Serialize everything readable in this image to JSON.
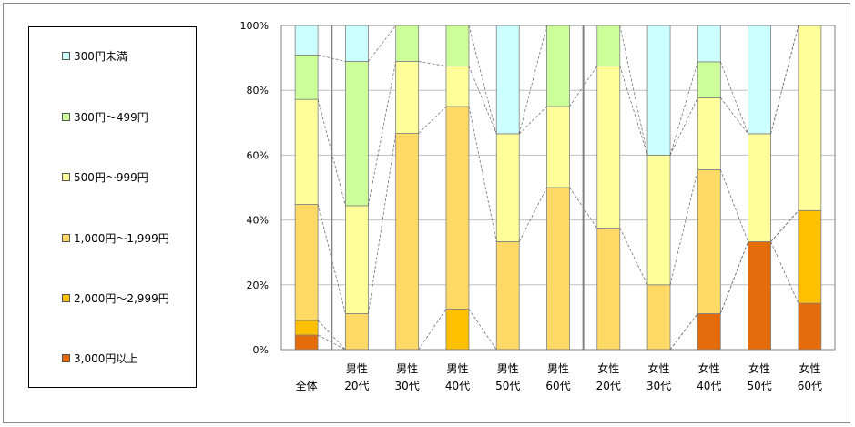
{
  "chart_data": {
    "type": "bar",
    "stacked": true,
    "percent": true,
    "title": "",
    "xlabel": "",
    "ylabel": "",
    "ylim": [
      0,
      100
    ],
    "yticks": [
      "0%",
      "20%",
      "40%",
      "60%",
      "80%",
      "100%"
    ],
    "grid": true,
    "legend_position": "left",
    "categories": [
      {
        "line1": "全体",
        "line2": ""
      },
      {
        "line1": "男性",
        "line2": "20代"
      },
      {
        "line1": "男性",
        "line2": "30代"
      },
      {
        "line1": "男性",
        "line2": "40代"
      },
      {
        "line1": "男性",
        "line2": "50代"
      },
      {
        "line1": "男性",
        "line2": "60代"
      },
      {
        "line1": "女性",
        "line2": "20代"
      },
      {
        "line1": "女性",
        "line2": "30代"
      },
      {
        "line1": "女性",
        "line2": "40代"
      },
      {
        "line1": "女性",
        "line2": "50代"
      },
      {
        "line1": "女性",
        "line2": "60代"
      }
    ],
    "series": [
      {
        "name": "3,000円以上",
        "color": "#E46C0A",
        "values": [
          4.5,
          0,
          0,
          0,
          0,
          0,
          0,
          0,
          11.1,
          33.3,
          14.3
        ]
      },
      {
        "name": "2,000円～2,999円",
        "color": "#FFC000",
        "values": [
          4.5,
          0,
          0,
          12.5,
          0,
          0,
          0,
          0,
          0,
          0,
          28.6
        ]
      },
      {
        "name": "1,000円～1,999円",
        "color": "#FFD966",
        "values": [
          35.8,
          11.1,
          66.7,
          62.5,
          33.3,
          50.0,
          37.5,
          20.0,
          44.4,
          0,
          0
        ]
      },
      {
        "name": "500円～999円",
        "color": "#FFFF99",
        "values": [
          32.4,
          33.3,
          22.2,
          12.5,
          33.3,
          25.0,
          50.0,
          40.0,
          22.2,
          33.3,
          57.1
        ]
      },
      {
        "name": "300円～499円",
        "color": "#CCFF99",
        "values": [
          13.7,
          44.5,
          11.1,
          12.5,
          0,
          25.0,
          12.5,
          0,
          11.1,
          0,
          0
        ]
      },
      {
        "name": "300円未満",
        "color": "#CCFFFF",
        "values": [
          9.1,
          11.1,
          0,
          0,
          33.4,
          0,
          0,
          40.0,
          11.2,
          33.4,
          0
        ]
      }
    ]
  }
}
